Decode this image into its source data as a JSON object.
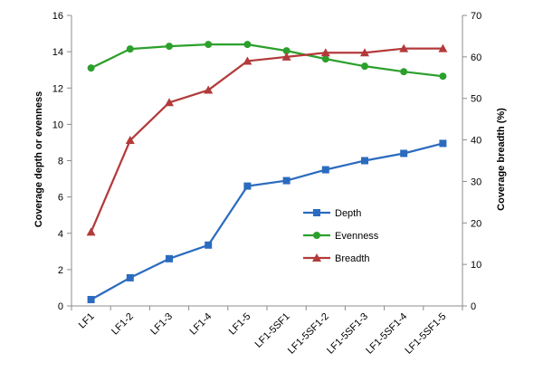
{
  "chart_data": {
    "type": "line",
    "title": "",
    "categories": [
      "LF1",
      "LF1-2",
      "LF1-3",
      "LF1-4",
      "LF1-5",
      "LF1-5SF1",
      "LF1-5SF1-2",
      "LF1-5SF1-3",
      "LF1-5SF1-4",
      "LF1-5SF1-5"
    ],
    "ylabel_left": "Coverage depth or evenness",
    "ylabel_right": "Coverage breadth (%)",
    "ylim_left": [
      0,
      16
    ],
    "ylim_right": [
      0,
      70
    ],
    "yticks_left": [
      "0",
      "2",
      "4",
      "6",
      "8",
      "10",
      "12",
      "14",
      "16"
    ],
    "yticks_right": [
      "0",
      "10",
      "20",
      "30",
      "40",
      "50",
      "60",
      "70"
    ],
    "grid": false,
    "legend_position": "center-right",
    "series": [
      {
        "name": "Depth",
        "axis": "left",
        "color": "#2b6bbf",
        "marker": "square",
        "values": [
          0.35,
          1.55,
          2.6,
          3.35,
          6.6,
          6.9,
          7.5,
          8.0,
          8.4,
          8.95
        ]
      },
      {
        "name": "Evenness",
        "axis": "left",
        "color": "#2ca02c",
        "marker": "circle",
        "values": [
          13.1,
          14.15,
          14.3,
          14.4,
          14.4,
          14.05,
          13.6,
          13.2,
          12.9,
          12.65
        ]
      },
      {
        "name": "Breadth",
        "axis": "right",
        "color": "#b33a3a",
        "marker": "triangle",
        "values": [
          17.8,
          39.9,
          49.0,
          52.0,
          59.0,
          60.0,
          61.0,
          61.0,
          62.0,
          62.0
        ]
      }
    ]
  }
}
